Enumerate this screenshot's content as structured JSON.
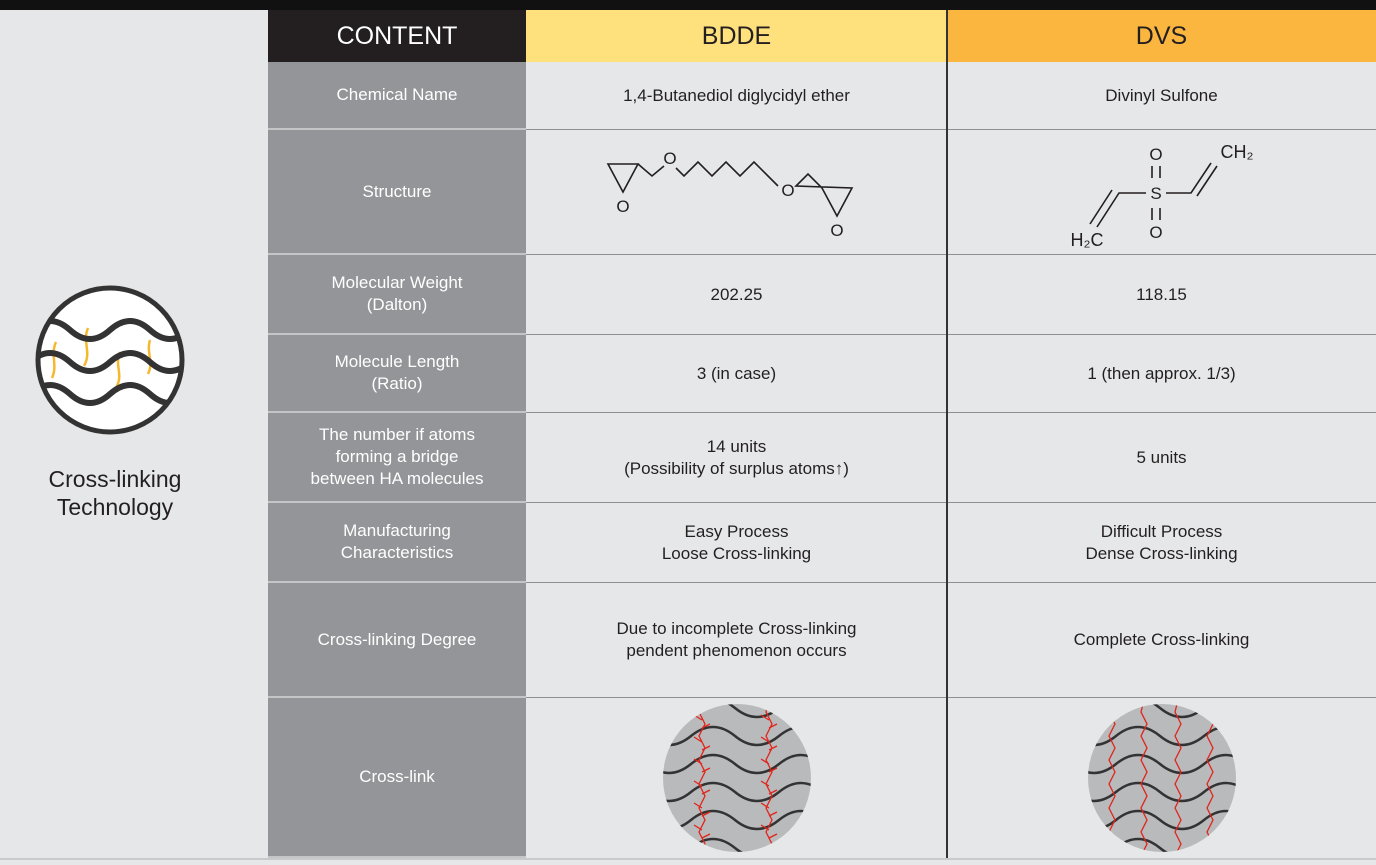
{
  "side_label": [
    "Cross-linking",
    "Technology"
  ],
  "table": {
    "headers": [
      "CONTENT",
      "BDDE",
      "DVS"
    ],
    "rows": [
      {
        "label": [
          "Chemical Name"
        ],
        "bdde": [
          "1,4-Butanediol diglycidyl ether"
        ],
        "dvs": [
          "Divinyl Sulfone"
        ]
      },
      {
        "label": [
          "Structure"
        ],
        "bdde": {
          "atoms": [
            "O",
            "O",
            "O",
            "O"
          ]
        },
        "dvs": {
          "atoms": [
            "O",
            "S",
            "O",
            "CH₂",
            "H₂C"
          ]
        }
      },
      {
        "label": [
          "Molecular Weight",
          "(Dalton)"
        ],
        "bdde": [
          "202.25"
        ],
        "dvs": [
          "118.15"
        ]
      },
      {
        "label": [
          "Molecule Length",
          "(Ratio)"
        ],
        "bdde": [
          "3 (in case)"
        ],
        "dvs": [
          "1 (then approx. 1/3)"
        ]
      },
      {
        "label": [
          "The number if atoms",
          "forming a bridge",
          "between HA molecules"
        ],
        "bdde": [
          "14 units",
          "(Possibility of surplus atoms↑)"
        ],
        "dvs": [
          "5 units"
        ]
      },
      {
        "label": [
          "Manufacturing",
          "Characteristics"
        ],
        "bdde": [
          "Easy Process",
          "Loose Cross-linking"
        ],
        "dvs": [
          "Difficult Process",
          "Dense Cross-linking"
        ]
      },
      {
        "label": [
          "Cross-linking Degree"
        ],
        "bdde": [
          "Due to incomplete Cross-linking",
          "pendent phenomenon occurs"
        ],
        "dvs": [
          "Complete Cross-linking"
        ]
      },
      {
        "label": [
          "Cross-link"
        ]
      }
    ]
  }
}
